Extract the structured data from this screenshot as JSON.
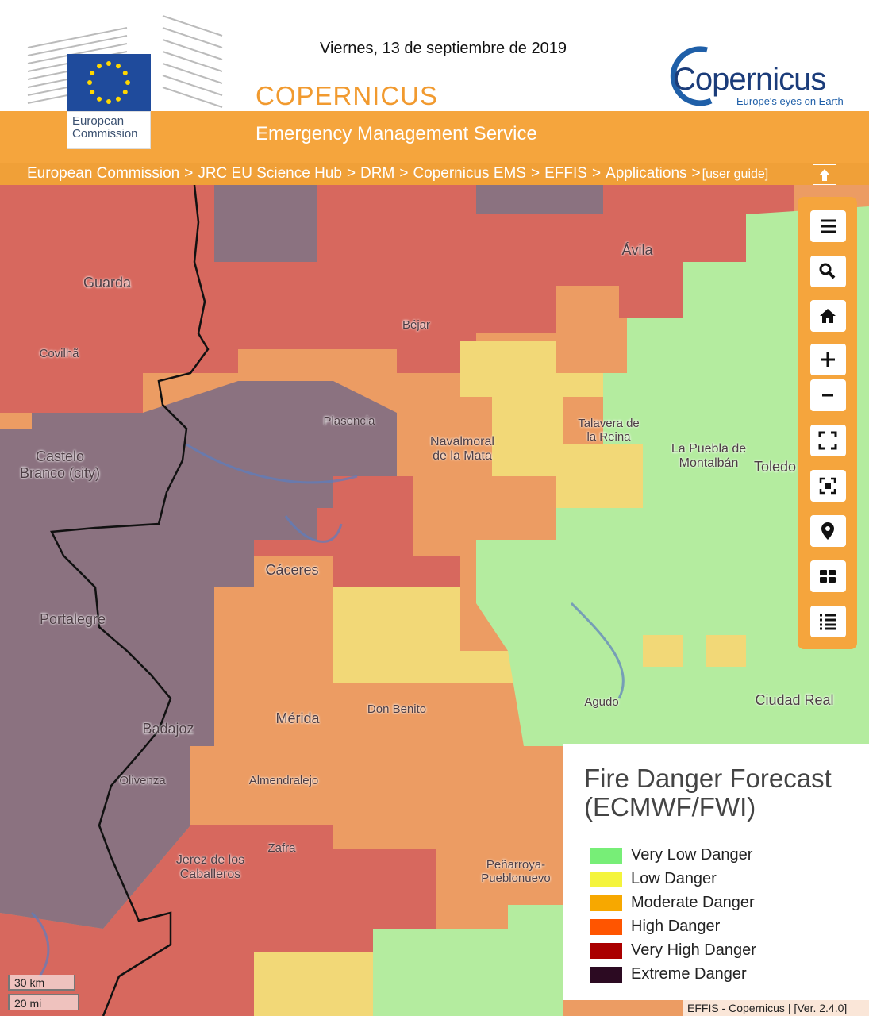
{
  "header": {
    "date": "Viernes, 13 de septiembre de 2019",
    "title": "COPERNICUS",
    "subtitle": "Emergency Management Service",
    "ec_logo": "European Commission",
    "logo": "Copernicus",
    "logo_tagline": "Europe's eyes on Earth"
  },
  "breadcrumb": {
    "items": [
      "European Commission",
      "JRC EU Science Hub",
      "DRM",
      "Copernicus EMS",
      "EFFIS",
      "Applications"
    ],
    "separator": ">",
    "guide": "[user guide]"
  },
  "map": {
    "places": [
      "Ávila",
      "Guarda",
      "Béjar",
      "Covilhã",
      "Plasencia",
      "Navalmoral de la Mata",
      "Talavera de la Reina",
      "La Puebla de Montalbán",
      "Toledo",
      "Castelo Branco (city)",
      "Cáceres",
      "Portalegre",
      "Mérida",
      "Don Benito",
      "Agudo",
      "Ciudad Real",
      "Badajoz",
      "Olivenza",
      "Almendralejo",
      "Zafra",
      "Jerez de los Caballeros",
      "Peñarroya-Pueblonuevo"
    ],
    "scale": [
      "30 km",
      "20 mi"
    ]
  },
  "legend": {
    "title": "Fire Danger Forecast (ECMWF/FWI)",
    "items": [
      {
        "name": "Very Low Danger",
        "color": "#77ee77"
      },
      {
        "name": "Low Danger",
        "color": "#f4f43c"
      },
      {
        "name": "Moderate Danger",
        "color": "#f7a800"
      },
      {
        "name": "High Danger",
        "color": "#ff5500"
      },
      {
        "name": "Very High Danger",
        "color": "#aa0000"
      },
      {
        "name": "Extreme Danger",
        "color": "#2c0a22"
      }
    ]
  },
  "footer": "EFFIS - Copernicus | [Ver. 2.4.0]"
}
